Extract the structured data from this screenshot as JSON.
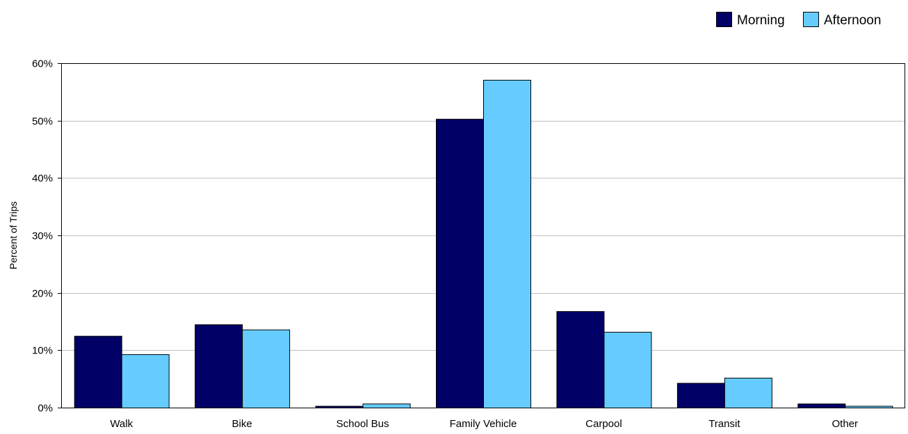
{
  "chart_data": {
    "type": "bar",
    "title": "",
    "xlabel": "",
    "ylabel": "Percent of Trips",
    "ylim": [
      0,
      60
    ],
    "yticks": [
      {
        "value": 0,
        "label": "0%"
      },
      {
        "value": 10,
        "label": "10%"
      },
      {
        "value": 20,
        "label": "20%"
      },
      {
        "value": 30,
        "label": "30%"
      },
      {
        "value": 40,
        "label": "40%"
      },
      {
        "value": 50,
        "label": "50%"
      },
      {
        "value": 60,
        "label": "60%"
      }
    ],
    "categories": [
      "Walk",
      "Bike",
      "School Bus",
      "Family Vehicle",
      "Carpool",
      "Transit",
      "Other"
    ],
    "series": [
      {
        "name": "Morning",
        "color": "#000066",
        "values": [
          12.5,
          14.5,
          0.3,
          50.3,
          16.8,
          4.3,
          0.7
        ]
      },
      {
        "name": "Afternoon",
        "color": "#66CCFF",
        "values": [
          9.3,
          13.6,
          0.7,
          57.1,
          13.2,
          5.2,
          0.3
        ]
      }
    ],
    "grid": true,
    "gridline_color": "#C0C0C0",
    "legend_position": "top-right"
  }
}
